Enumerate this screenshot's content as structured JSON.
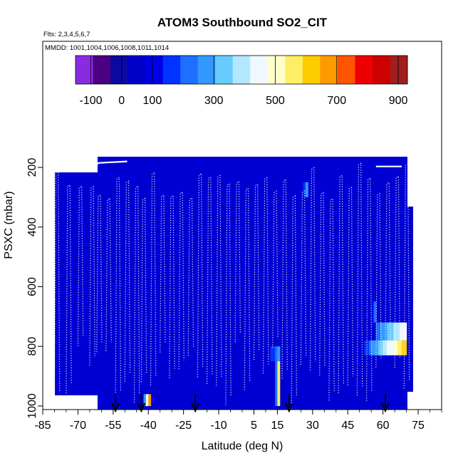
{
  "chart_data": {
    "type": "heatmap",
    "title": "ATOM3 Southbound SO2_CIT",
    "flights_label": "Flts: 2,3,4,5,6,7",
    "dates_label": "MMDD: 1001,1004,1006,1008,1011,1014",
    "xlabel": "Latitude (deg N)",
    "ylabel": "PSXC (mbar)",
    "xlim": [
      -85,
      85
    ],
    "ylim": [
      1000,
      -250
    ],
    "x_ticks": [
      -85,
      -70,
      -55,
      -40,
      -25,
      -10,
      5,
      15,
      30,
      45,
      60,
      75
    ],
    "x_tick_labels": [
      "-85",
      "-70",
      "-55",
      "-40",
      "-25",
      "-10",
      "5",
      "15",
      "30",
      "45",
      "60",
      "75"
    ],
    "y_ticks": [
      200,
      400,
      600,
      800,
      1000
    ],
    "y_tick_labels": [
      "200",
      "400",
      "600",
      "800",
      "1000"
    ],
    "colorbar": {
      "range": [
        -150,
        930
      ],
      "tick_values": [
        -100,
        0,
        100,
        300,
        500,
        700,
        900
      ],
      "tick_labels": [
        "-100",
        "0",
        "100",
        "300",
        "500",
        "700",
        "900"
      ],
      "colors": [
        "#8a2be2",
        "#4b0082",
        "#0a0aa0",
        "#0000c8",
        "#0000e6",
        "#0033ff",
        "#1e6eff",
        "#3399ff",
        "#66ccff",
        "#b3e6ff",
        "#f0f8ff",
        "#ffffcc",
        "#ffee66",
        "#ffcc00",
        "#ff9900",
        "#ff5500",
        "#ee0000",
        "#cc0000",
        "#a01e1e"
      ]
    },
    "hotspots": [
      {
        "lat_min": -42,
        "lat_max": -39,
        "p_min": 960,
        "p_max": 1000,
        "value": 650
      },
      {
        "lat_min": 12,
        "lat_max": 16,
        "p_min": 800,
        "p_max": 850,
        "value": 300
      },
      {
        "lat_min": 14,
        "lat_max": 16,
        "p_min": 850,
        "p_max": 1000,
        "value": 550
      },
      {
        "lat_min": 25,
        "lat_max": 28,
        "p_min": 250,
        "p_max": 300,
        "value": 250
      },
      {
        "lat_min": 55,
        "lat_max": 57,
        "p_min": 650,
        "p_max": 720,
        "value": 200
      },
      {
        "lat_min": 57,
        "lat_max": 70,
        "p_min": 720,
        "p_max": 780,
        "value": 470
      },
      {
        "lat_min": 52,
        "lat_max": 56,
        "p_min": 780,
        "p_max": 830,
        "value": 300
      },
      {
        "lat_min": 56,
        "lat_max": 70,
        "p_min": 780,
        "p_max": 830,
        "value": 620
      }
    ],
    "arrows_lat": [
      -54,
      -43,
      -20,
      20,
      61
    ]
  }
}
